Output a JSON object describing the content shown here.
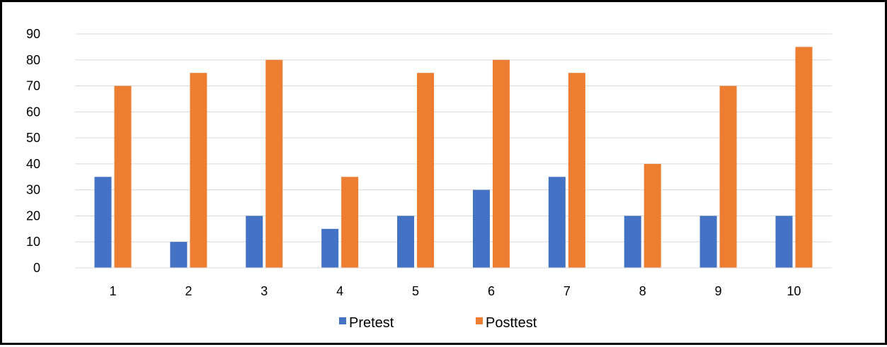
{
  "chart_data": {
    "type": "bar",
    "categories": [
      "1",
      "2",
      "3",
      "4",
      "5",
      "6",
      "7",
      "8",
      "9",
      "10"
    ],
    "series": [
      {
        "name": "Pretest",
        "color": "#4472C4",
        "values": [
          35,
          10,
          20,
          15,
          20,
          30,
          35,
          20,
          20,
          20
        ]
      },
      {
        "name": "Posttest",
        "color": "#ED7D31",
        "values": [
          70,
          75,
          80,
          35,
          75,
          80,
          75,
          40,
          70,
          85
        ]
      }
    ],
    "title": "",
    "xlabel": "",
    "ylabel": "",
    "ylim": [
      0,
      90
    ],
    "yticks": [
      0,
      10,
      20,
      30,
      40,
      50,
      60,
      70,
      80,
      90
    ],
    "grid": "horizontal",
    "gridline_color": "#D9D9D9",
    "legend": "bottom-center"
  }
}
